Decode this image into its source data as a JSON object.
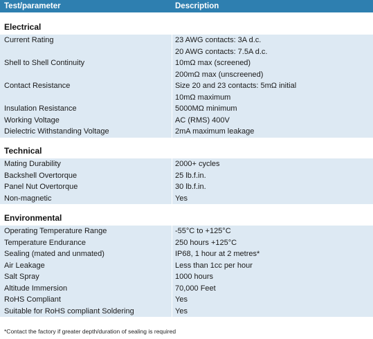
{
  "header": {
    "col1": "Test/parameter",
    "col2": "Description"
  },
  "sections": [
    {
      "title": "Electrical",
      "rows": [
        [
          "Current Rating",
          "23 AWG contacts: 3A d.c."
        ],
        [
          "",
          "20 AWG contacts: 7.5A d.c."
        ],
        [
          "Shell to Shell Continuity",
          "10mΩ max (screened)"
        ],
        [
          "",
          "200mΩ max (unscreened)"
        ],
        [
          "Contact Resistance",
          "Size 20 and 23 contacts: 5mΩ initial"
        ],
        [
          "",
          "10mΩ maximum"
        ],
        [
          "Insulation Resistance",
          "5000MΩ minimum"
        ],
        [
          "Working Voltage",
          "AC (RMS) 400V"
        ],
        [
          "Dielectric Withstanding Voltage",
          "2mA maximum leakage"
        ]
      ]
    },
    {
      "title": "Technical",
      "rows": [
        [
          "Mating Durability",
          "2000+ cycles"
        ],
        [
          "Backshell Overtorque",
          "25 lb.f.in."
        ],
        [
          "Panel Nut Overtorque",
          "30 lb.f.in."
        ],
        [
          "Non-magnetic",
          "Yes"
        ]
      ]
    },
    {
      "title": "Environmental",
      "rows": [
        [
          "Operating Temperature Range",
          "-55°C to +125°C"
        ],
        [
          "Temperature Endurance",
          "250 hours +125°C"
        ],
        [
          "Sealing (mated and unmated)",
          "IP68, 1 hour at 2 metres*"
        ],
        [
          "Air Leakage",
          "Less than 1cc per hour"
        ],
        [
          "Salt Spray",
          "1000 hours"
        ],
        [
          "Altitude Immersion",
          "70,000 Feet"
        ],
        [
          "RoHS Compliant",
          "Yes"
        ],
        [
          "Suitable for RoHS compliant Soldering",
          "Yes"
        ]
      ]
    }
  ],
  "footnote": "*Contact the factory if greater depth/duration of sealing is required"
}
